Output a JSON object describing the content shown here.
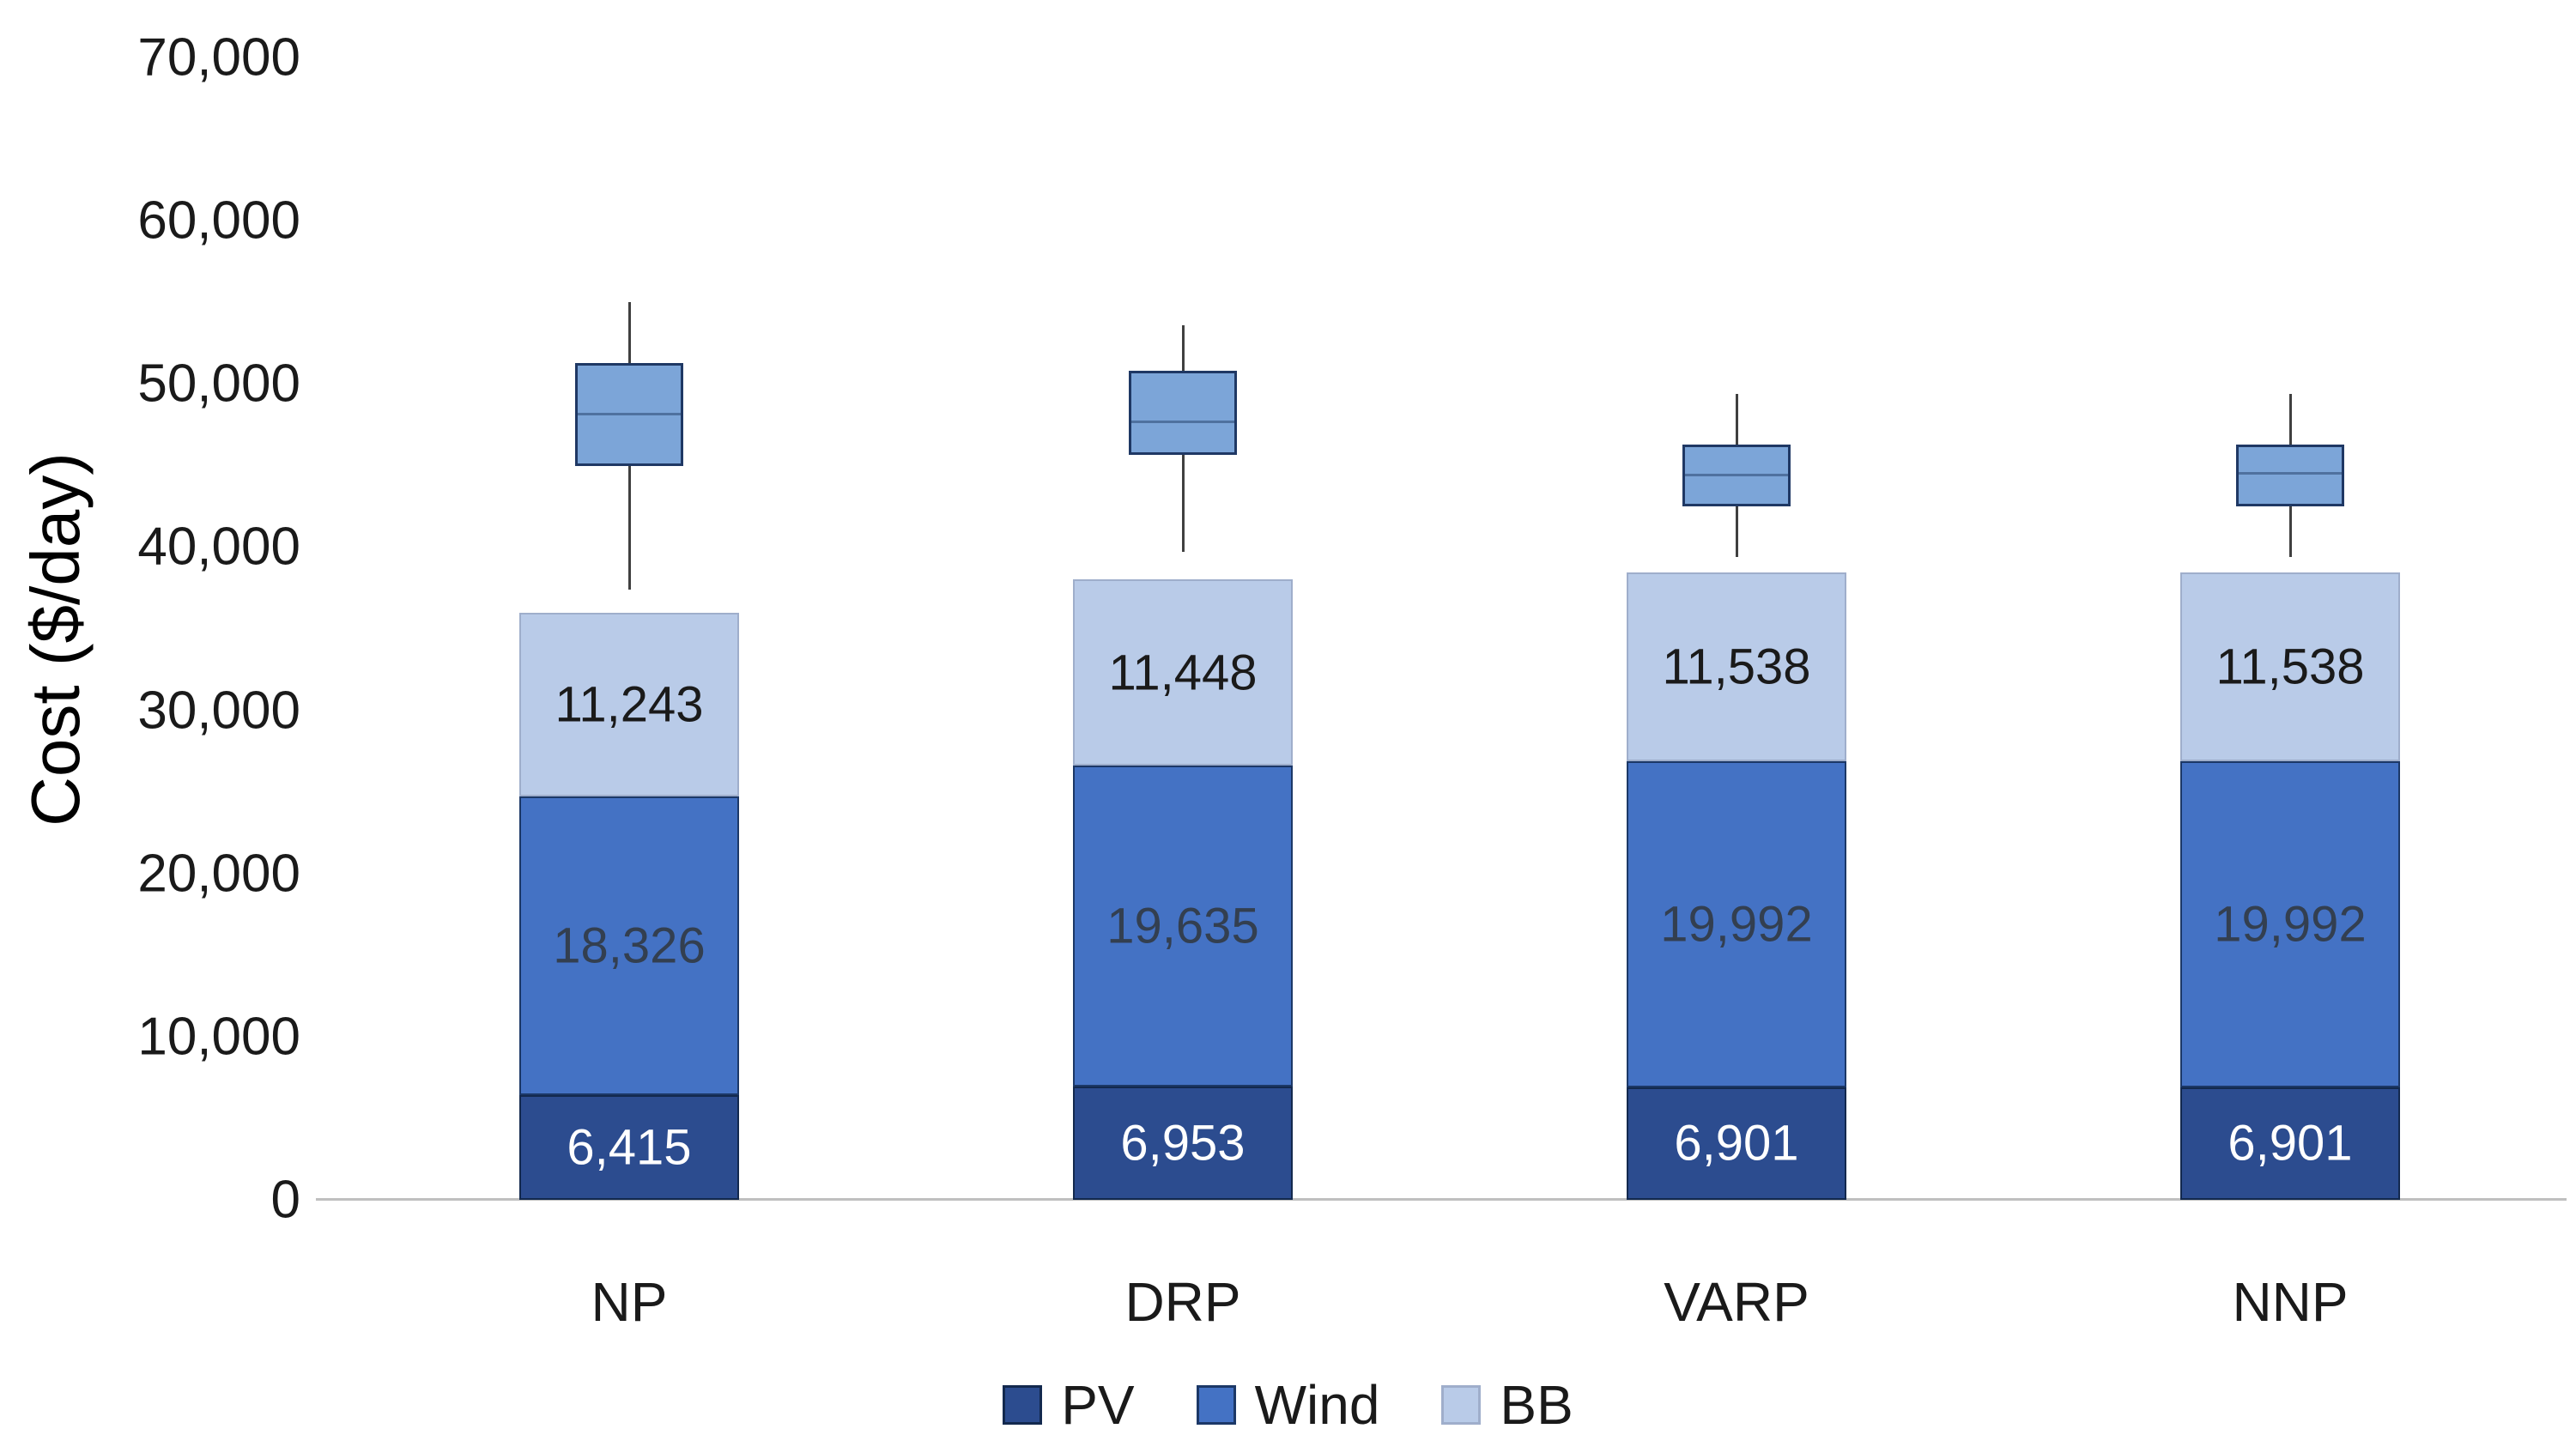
{
  "chart_data": {
    "type": "bar",
    "stacked": true,
    "title": "",
    "ylabel": "Cost ($/day)",
    "xlabel": "",
    "categories": [
      "NP",
      "DRP",
      "VARP",
      "NNP"
    ],
    "series": [
      {
        "name": "PV",
        "color": "#2C4C8F",
        "border_color": "#13294E",
        "label_color": "#FFFFFF",
        "values": [
          6415,
          6953,
          6901,
          6901
        ],
        "labels": [
          "6,415",
          "6,953",
          "6,901",
          "6,901"
        ]
      },
      {
        "name": "Wind",
        "color": "#4472C4",
        "border_color": "#1C3867",
        "label_color": "#333F50",
        "values": [
          18326,
          19635,
          19992,
          19992
        ],
        "labels": [
          "18,326",
          "19,635",
          "19,992",
          "19,992"
        ]
      },
      {
        "name": "BB",
        "color": "#B9CBE8",
        "border_color": "#9FAECB",
        "label_color": "#1A1A1A",
        "values": [
          11243,
          11448,
          11538,
          11538
        ],
        "labels": [
          "11,243",
          "11,448",
          "11,538",
          "11,538"
        ]
      }
    ],
    "bar_totals": [
      35984,
      38036,
      38431,
      38431
    ],
    "boxplots": {
      "fill_color": "#7CA5D8",
      "border_color": "#1F3864",
      "median_color": "#4F719F",
      "whisker_color": "#404040",
      "points": [
        {
          "category": "NP",
          "low": 37400,
          "q1": 44950,
          "median": 48150,
          "q3": 51300,
          "high": 55000
        },
        {
          "category": "DRP",
          "low": 39700,
          "q1": 45650,
          "median": 47650,
          "q3": 50800,
          "high": 53600
        },
        {
          "category": "VARP",
          "low": 39400,
          "q1": 42500,
          "median": 44400,
          "q3": 46300,
          "high": 49400
        },
        {
          "category": "NNP",
          "low": 39400,
          "q1": 42500,
          "median": 44500,
          "q3": 46300,
          "high": 49400
        }
      ]
    },
    "ylim": [
      0,
      70000
    ],
    "ytick_step": 10000,
    "ytick_labels": [
      "0",
      "10,000",
      "20,000",
      "30,000",
      "40,000",
      "50,000",
      "60,000",
      "70,000"
    ],
    "grid": false,
    "legend_position": "bottom"
  }
}
